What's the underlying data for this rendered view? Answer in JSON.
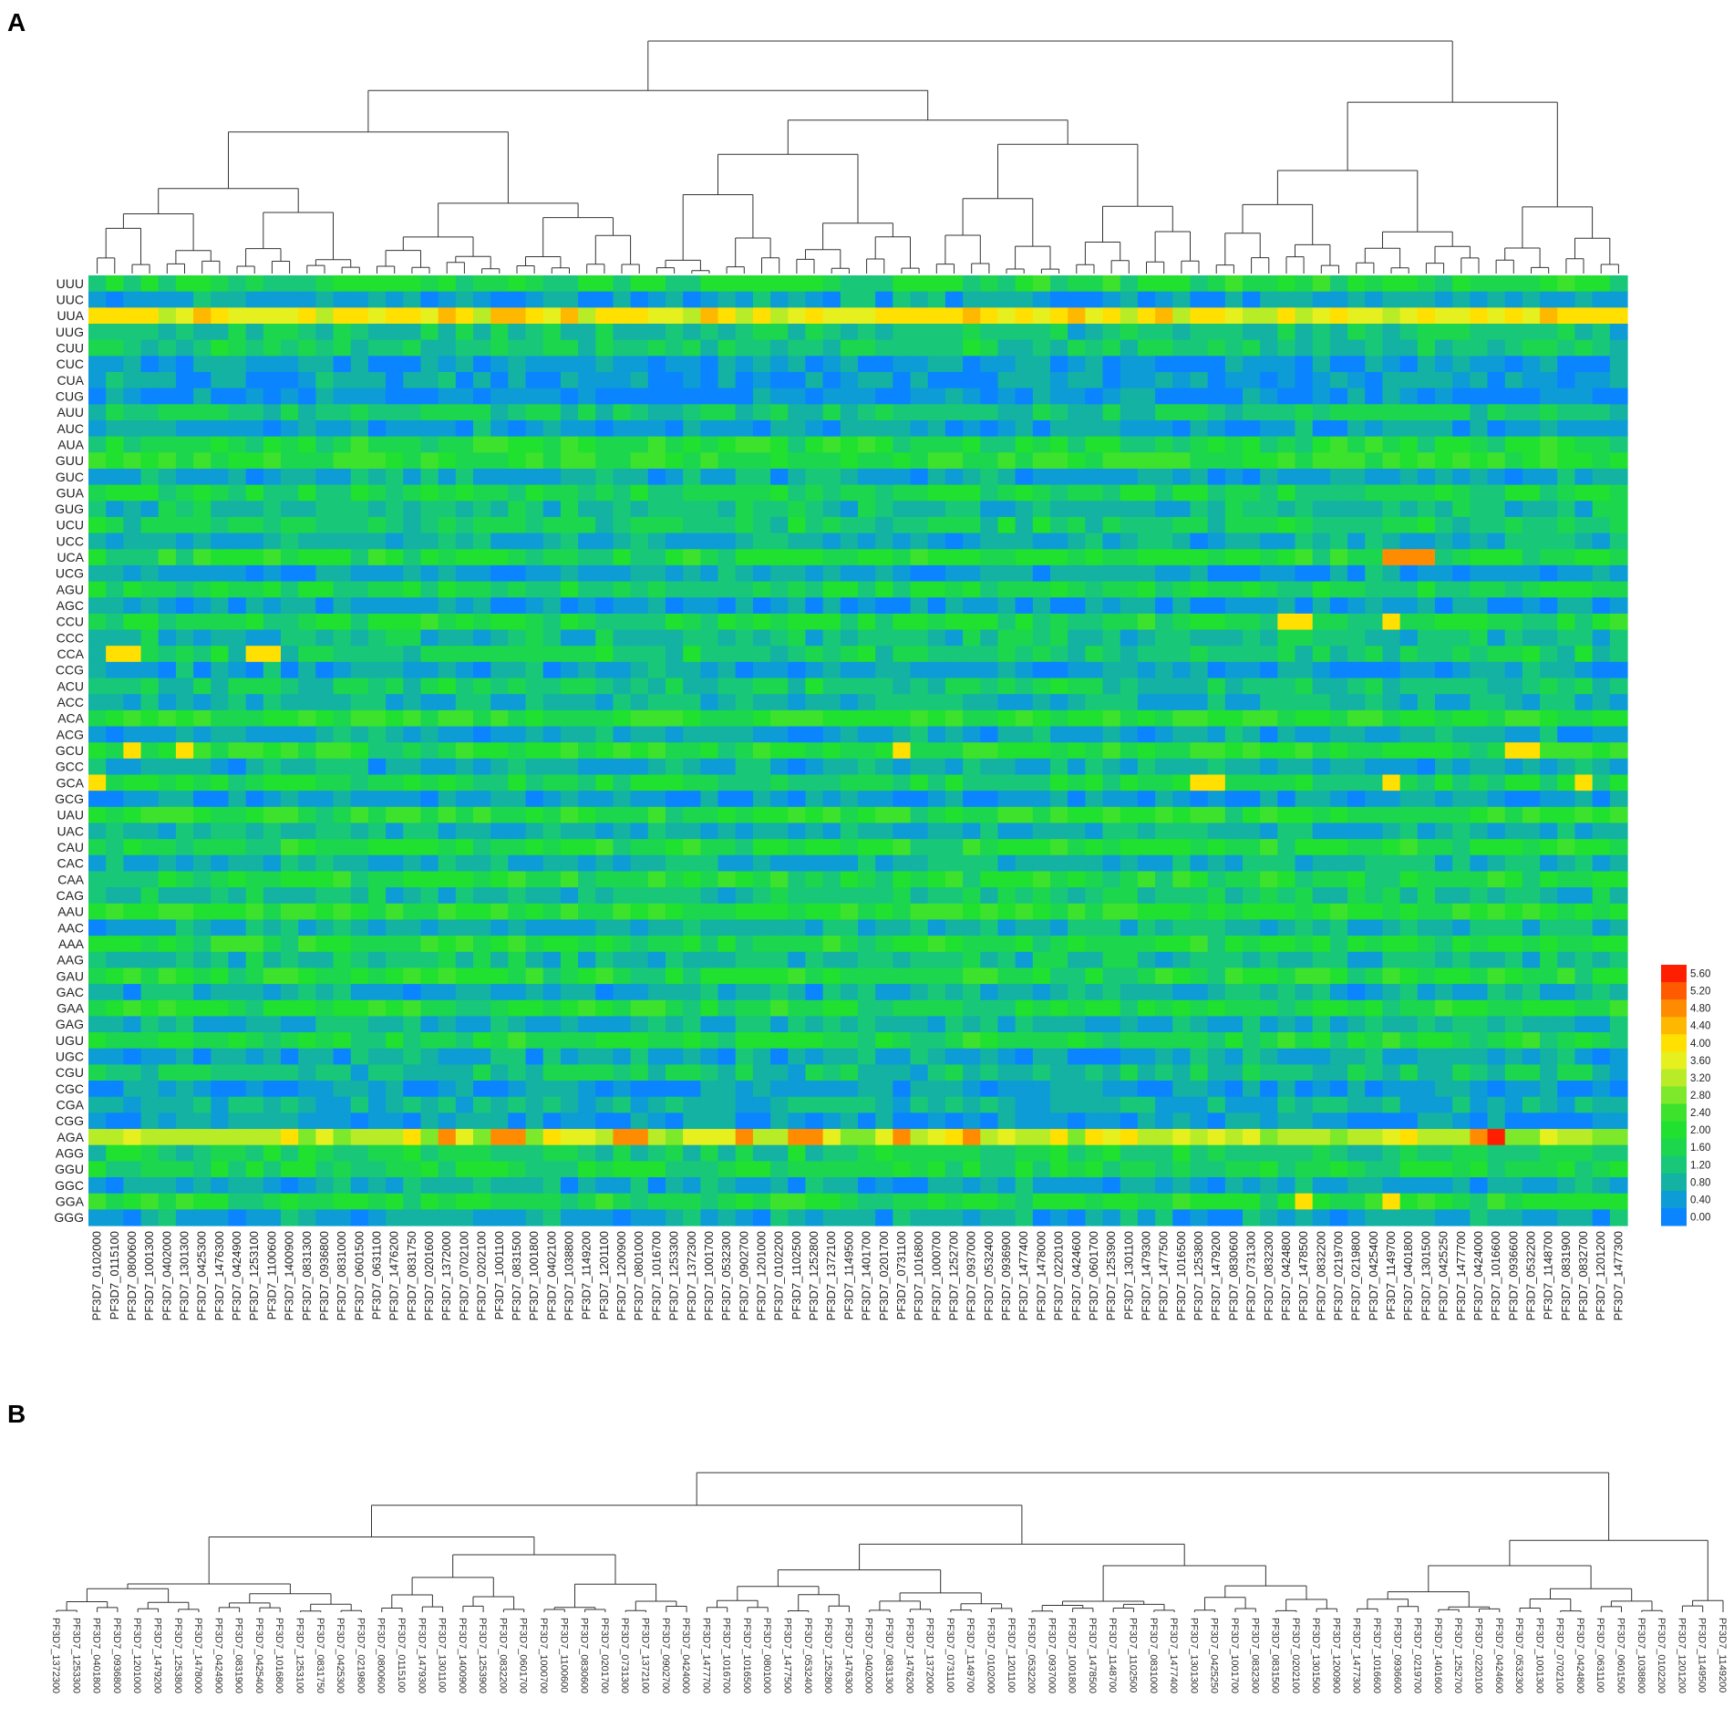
{
  "panels": {
    "a_label": "A",
    "b_label": "B"
  },
  "chart_data": [
    {
      "type": "heatmap",
      "title": "",
      "rows": [
        "UUU",
        "UUC",
        "UUA",
        "UUG",
        "CUU",
        "CUC",
        "CUA",
        "CUG",
        "AUU",
        "AUC",
        "AUA",
        "GUU",
        "GUC",
        "GUA",
        "GUG",
        "UCU",
        "UCC",
        "UCA",
        "UCG",
        "AGU",
        "AGC",
        "CCU",
        "CCC",
        "CCA",
        "CCG",
        "ACU",
        "ACC",
        "ACA",
        "ACG",
        "GCU",
        "GCC",
        "GCA",
        "GCG",
        "UAU",
        "UAC",
        "CAU",
        "CAC",
        "CAA",
        "CAG",
        "AAU",
        "AAC",
        "AAA",
        "AAG",
        "GAU",
        "GAC",
        "GAA",
        "GAG",
        "UGU",
        "UGC",
        "CGU",
        "CGC",
        "CGA",
        "CGG",
        "AGA",
        "AGG",
        "GGU",
        "GGC",
        "GGA",
        "GGG"
      ],
      "columns": [
        "PF3D7_0102000",
        "PF3D7_0115100",
        "PF3D7_0800600",
        "PF3D7_1001300",
        "PF3D7_0402000",
        "PF3D7_1301300",
        "PF3D7_0425300",
        "PF3D7_1476300",
        "PF3D7_0424900",
        "PF3D7_1253100",
        "PF3D7_1100600",
        "PF3D7_1400900",
        "PF3D7_0831300",
        "PF3D7_0936800",
        "PF3D7_0831000",
        "PF3D7_0601500",
        "PF3D7_0631100",
        "PF3D7_1476200",
        "PF3D7_0831750",
        "PF3D7_0201600",
        "PF3D7_1372000",
        "PF3D7_0702100",
        "PF3D7_0202100",
        "PF3D7_1001100",
        "PF3D7_0831500",
        "PF3D7_1001800",
        "PF3D7_0402100",
        "PF3D7_1038800",
        "PF3D7_1149200",
        "PF3D7_1201100",
        "PF3D7_1200900",
        "PF3D7_0801000",
        "PF3D7_1016700",
        "PF3D7_1253300",
        "PF3D7_1372300",
        "PF3D7_1001700",
        "PF3D7_0532300",
        "PF3D7_0902700",
        "PF3D7_1201000",
        "PF3D7_0102200",
        "PF3D7_1102500",
        "PF3D7_1252800",
        "PF3D7_1372100",
        "PF3D7_1149500",
        "PF3D7_1401700",
        "PF3D7_0201700",
        "PF3D7_0731100",
        "PF3D7_1016800",
        "PF3D7_1000700",
        "PF3D7_1252700",
        "PF3D7_0937000",
        "PF3D7_0532400",
        "PF3D7_0936900",
        "PF3D7_1477400",
        "PF3D7_1478000",
        "PF3D7_0220100",
        "PF3D7_0424600",
        "PF3D7_0601700",
        "PF3D7_1253900",
        "PF3D7_1301100",
        "PF3D7_1479300",
        "PF3D7_1477500",
        "PF3D7_1016500",
        "PF3D7_1253800",
        "PF3D7_1479200",
        "PF3D7_0830600",
        "PF3D7_0731300",
        "PF3D7_0832300",
        "PF3D7_0424800",
        "PF3D7_1478500",
        "PF3D7_0832200",
        "PF3D7_0219700",
        "PF3D7_0219800",
        "PF3D7_0425400",
        "PF3D7_1149700",
        "PF3D7_0401800",
        "PF3D7_1301500",
        "PF3D7_0425250",
        "PF3D7_1477700",
        "PF3D7_0424000",
        "PF3D7_1016600",
        "PF3D7_0936600",
        "PF3D7_0532200",
        "PF3D7_1148700",
        "PF3D7_0831900",
        "PF3D7_0832700",
        "PF3D7_1201200",
        "PF3D7_1477300"
      ],
      "colorscale": {
        "min": 0.0,
        "max": 5.6,
        "ticks": [
          "0.00",
          "0.40",
          "0.80",
          "1.20",
          "1.60",
          "2.00",
          "2.40",
          "2.80",
          "3.20",
          "3.60",
          "4.00",
          "4.40",
          "4.80",
          "5.20",
          "5.60"
        ],
        "colors": [
          "#0a84ff",
          "#0d9cd5",
          "#13b2a3",
          "#18c878",
          "#1cd64e",
          "#20e030",
          "#3de22c",
          "#7ee82a",
          "#b7ec26",
          "#e6f01e",
          "#ffe000",
          "#ffb800",
          "#ff8c00",
          "#ff5a00",
          "#ff1e00"
        ]
      },
      "row_base_values": [
        1.7,
        0.6,
        3.7,
        1.1,
        1.3,
        0.4,
        0.5,
        0.3,
        1.2,
        0.5,
        1.8,
        2.0,
        0.6,
        1.6,
        1.0,
        1.4,
        0.7,
        1.8,
        0.5,
        1.6,
        0.4,
        1.7,
        1.0,
        1.4,
        0.5,
        1.3,
        0.8,
        2.0,
        0.6,
        1.9,
        0.7,
        1.6,
        0.4,
        1.9,
        0.8,
        1.8,
        0.8,
        1.8,
        1.1,
        2.0,
        0.7,
        1.8,
        1.0,
        1.8,
        0.7,
        1.8,
        0.8,
        1.7,
        0.6,
        1.1,
        0.4,
        0.8,
        0.4,
        3.3,
        1.4,
        1.6,
        0.6,
        1.8,
        0.6
      ],
      "highlights": [
        {
          "row": "UUA",
          "cols": [
            6,
            23,
            24,
            27,
            35,
            50,
            56
          ],
          "value": 4.4
        },
        {
          "row": "UCA",
          "cols": [
            74,
            75,
            76
          ],
          "value": 4.6
        },
        {
          "row": "CCA",
          "cols": [
            1,
            2,
            9,
            10
          ],
          "value": 3.9
        },
        {
          "row": "CCU",
          "cols": [
            68,
            69,
            74
          ],
          "value": 4.0
        },
        {
          "row": "GCU",
          "cols": [
            2,
            5,
            46,
            81,
            82
          ],
          "value": 3.9
        },
        {
          "row": "GCA",
          "cols": [
            0,
            63,
            64,
            74,
            85
          ],
          "value": 3.9
        },
        {
          "row": "AGA",
          "cols": [
            20,
            23,
            24,
            30,
            31,
            37,
            40,
            41,
            46,
            50,
            79
          ],
          "value": 4.6
        },
        {
          "row": "AGA",
          "cols": [
            80
          ],
          "value": 5.6
        },
        {
          "row": "GGA",
          "cols": [
            69,
            74
          ],
          "value": 3.9
        }
      ]
    },
    {
      "type": "dendrogram",
      "leaves": [
        "PF3D7_1372300",
        "PF3D7_1253300",
        "PF3D7_0401800",
        "PF3D7_0936800",
        "PF3D7_1201000",
        "PF3D7_1479200",
        "PF3D7_1253800",
        "PF3D7_1478000",
        "PF3D7_0424900",
        "PF3D7_0831900",
        "PF3D7_0425400",
        "PF3D7_1016800",
        "PF3D7_1253100",
        "PF3D7_0831750",
        "PF3D7_0425300",
        "PF3D7_0219800",
        "PF3D7_0800600",
        "PF3D7_0115100",
        "PF3D7_1479300",
        "PF3D7_1301100",
        "PF3D7_1400900",
        "PF3D7_1253900",
        "PF3D7_0832200",
        "PF3D7_0601700",
        "PF3D7_1000700",
        "PF3D7_1100600",
        "PF3D7_0830600",
        "PF3D7_0201700",
        "PF3D7_0731300",
        "PF3D7_1372100",
        "PF3D7_0902700",
        "PF3D7_0424000",
        "PF3D7_1477700",
        "PF3D7_1016700",
        "PF3D7_1016500",
        "PF3D7_0801000",
        "PF3D7_1477500",
        "PF3D7_0532400",
        "PF3D7_1252800",
        "PF3D7_1476300",
        "PF3D7_0402000",
        "PF3D7_0831300",
        "PF3D7_1476200",
        "PF3D7_1372000",
        "PF3D7_0731100",
        "PF3D7_1149700",
        "PF3D7_0102000",
        "PF3D7_1201100",
        "PF3D7_0532200",
        "PF3D7_0937000",
        "PF3D7_1001800",
        "PF3D7_1478500",
        "PF3D7_1148700",
        "PF3D7_1102500",
        "PF3D7_0831000",
        "PF3D7_1477400",
        "PF3D7_1301300",
        "PF3D7_0425250",
        "PF3D7_1001700",
        "PF3D7_0832300",
        "PF3D7_0831500",
        "PF3D7_0202100",
        "PF3D7_1301500",
        "PF3D7_1200900",
        "PF3D7_1477300",
        "PF3D7_1016600",
        "PF3D7_0936600",
        "PF3D7_0219700",
        "PF3D7_1401600",
        "PF3D7_1252700",
        "PF3D7_0220100",
        "PF3D7_0424600",
        "PF3D7_0532300",
        "PF3D7_1001300",
        "PF3D7_0702100",
        "PF3D7_0424800",
        "PF3D7_0631100",
        "PF3D7_0601500",
        "PF3D7_1038800",
        "PF3D7_0102200",
        "PF3D7_1201200",
        "PF3D7_1149500",
        "PF3D7_1149200"
      ]
    }
  ]
}
